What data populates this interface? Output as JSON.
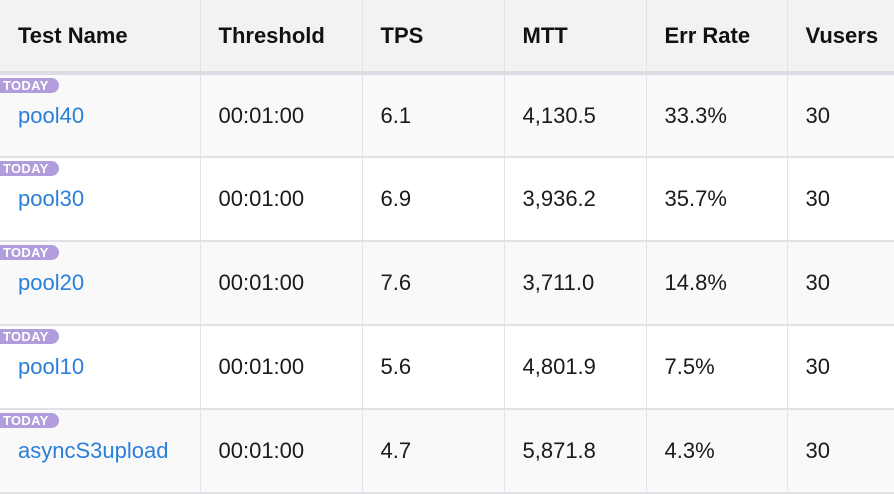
{
  "table": {
    "columns": [
      "Test Name",
      "Threshold",
      "TPS",
      "MTT",
      "Err Rate",
      "Vusers"
    ],
    "rows": [
      {
        "badge": "TODAY",
        "name": "pool40",
        "threshold": "00:01:00",
        "tps": "6.1",
        "mtt": "4,130.5",
        "err_rate": "33.3%",
        "vusers": "30"
      },
      {
        "badge": "TODAY",
        "name": "pool30",
        "threshold": "00:01:00",
        "tps": "6.9",
        "mtt": "3,936.2",
        "err_rate": "35.7%",
        "vusers": "30"
      },
      {
        "badge": "TODAY",
        "name": "pool20",
        "threshold": "00:01:00",
        "tps": "7.6",
        "mtt": "3,711.0",
        "err_rate": "14.8%",
        "vusers": "30"
      },
      {
        "badge": "TODAY",
        "name": "pool10",
        "threshold": "00:01:00",
        "tps": "5.6",
        "mtt": "4,801.9",
        "err_rate": "7.5%",
        "vusers": "30"
      },
      {
        "badge": "TODAY",
        "name": "asyncS3upload",
        "threshold": "00:01:00",
        "tps": "4.7",
        "mtt": "5,871.8",
        "err_rate": "4.3%",
        "vusers": "30"
      }
    ]
  },
  "colors": {
    "link": "#2a7fd8",
    "badge": "#b19ddc",
    "header_bg": "#f2f2f2"
  }
}
